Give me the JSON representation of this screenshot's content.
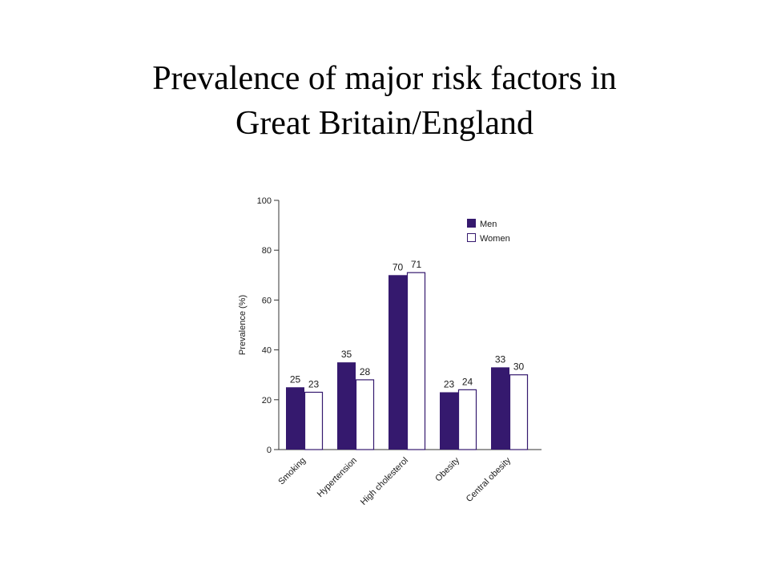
{
  "slide": {
    "title_line1": "Prevalence of major risk factors in",
    "title_line2": "Great Britain/England"
  },
  "chart_data": {
    "type": "bar",
    "title": "Prevalence of major risk factors in Great Britain/England",
    "xlabel": "",
    "ylabel": "Prevalence (%)",
    "ylim": [
      0,
      100
    ],
    "yticks": [
      0,
      20,
      40,
      60,
      80,
      100
    ],
    "categories": [
      "Smoking",
      "Hypertension",
      "High cholesterol",
      "Obesity",
      "Central obesity"
    ],
    "series": [
      {
        "name": "Men",
        "values": [
          25,
          35,
          70,
          23,
          33
        ],
        "color": "#35196e",
        "fill": "solid"
      },
      {
        "name": "Women",
        "values": [
          23,
          28,
          71,
          24,
          30
        ],
        "color": "#35196e",
        "fill": "outline"
      }
    ],
    "data_labels": true,
    "legend": "top-right",
    "grid": false
  }
}
